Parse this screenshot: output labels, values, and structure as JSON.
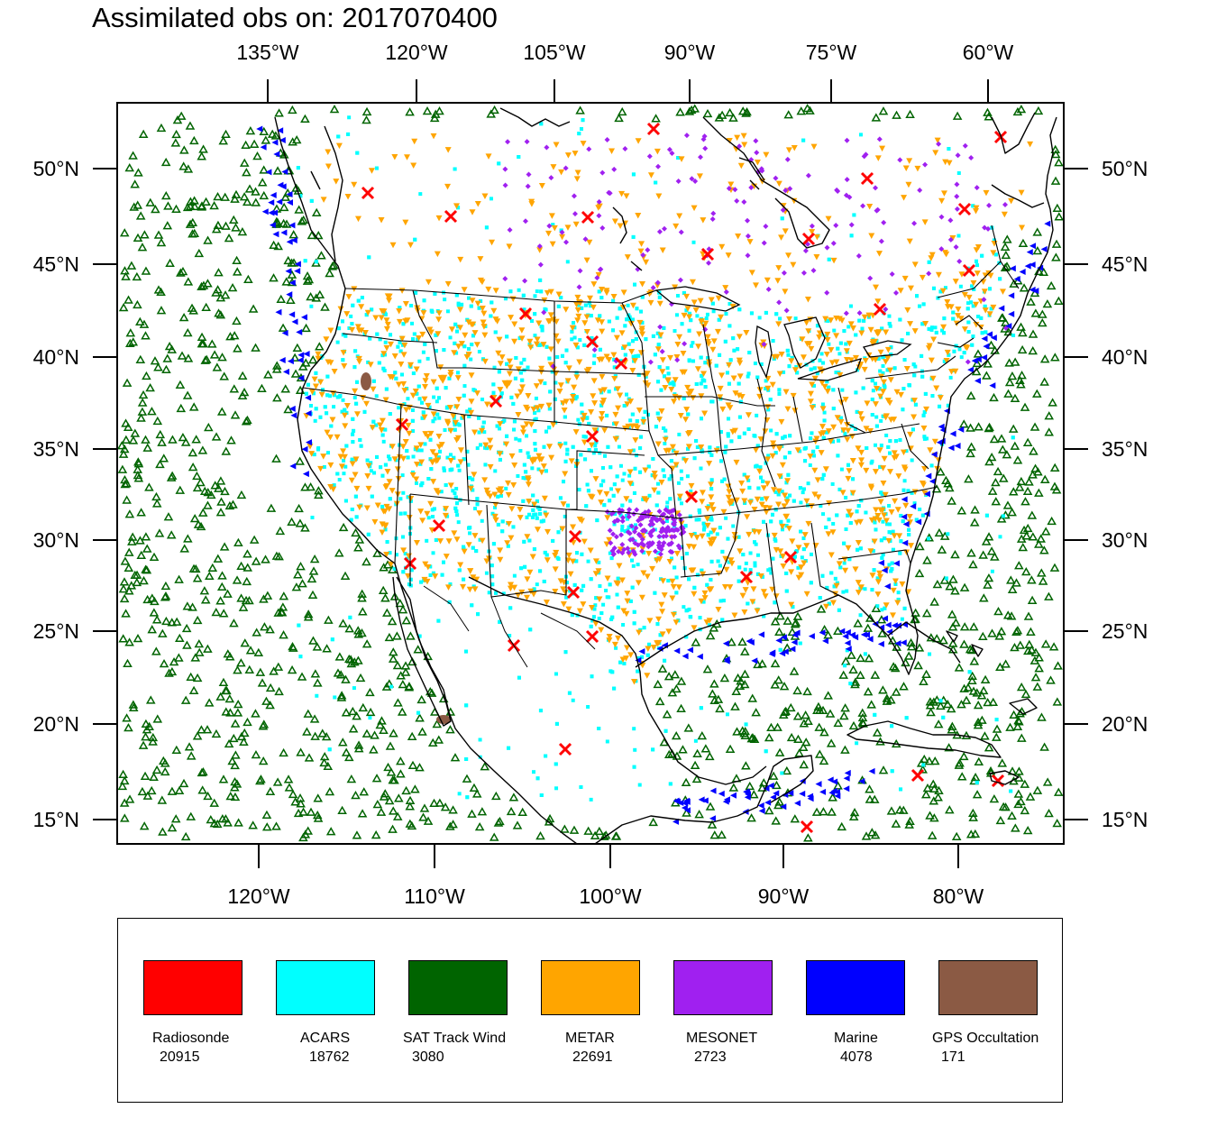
{
  "title": "Assimilated obs on: 2017070400",
  "top_lon_labels": [
    "135°W",
    "120°W",
    "105°W",
    "90°W",
    "75°W",
    "60°W"
  ],
  "bottom_lon_labels": [
    "120°W",
    "110°W",
    "100°W",
    "90°W",
    "80°W"
  ],
  "lat_labels": [
    "50°N",
    "45°N",
    "40°N",
    "35°N",
    "30°N",
    "25°N",
    "20°N",
    "15°N"
  ],
  "legend": [
    {
      "label": "Radiosonde",
      "count": "20915",
      "color": "#ff0000",
      "marker": "x-cross-icon"
    },
    {
      "label": "ACARS",
      "count": "18762",
      "color": "#00ffff",
      "marker": "square-dot-icon"
    },
    {
      "label": "SAT Track Wind",
      "count": "3080",
      "color": "#006400",
      "marker": "open-triangle-icon"
    },
    {
      "label": "METAR",
      "count": "22691",
      "color": "#ffa500",
      "marker": "down-triangle-icon"
    },
    {
      "label": "MESONET",
      "count": "2723",
      "color": "#a020f0",
      "marker": "diamond-icon"
    },
    {
      "label": "Marine",
      "count": "4078",
      "color": "#0000ff",
      "marker": "left-triangle-icon"
    },
    {
      "label": "GPS Occultation",
      "count": "171",
      "color": "#8b5a44",
      "marker": "filled-blob-icon"
    }
  ]
}
